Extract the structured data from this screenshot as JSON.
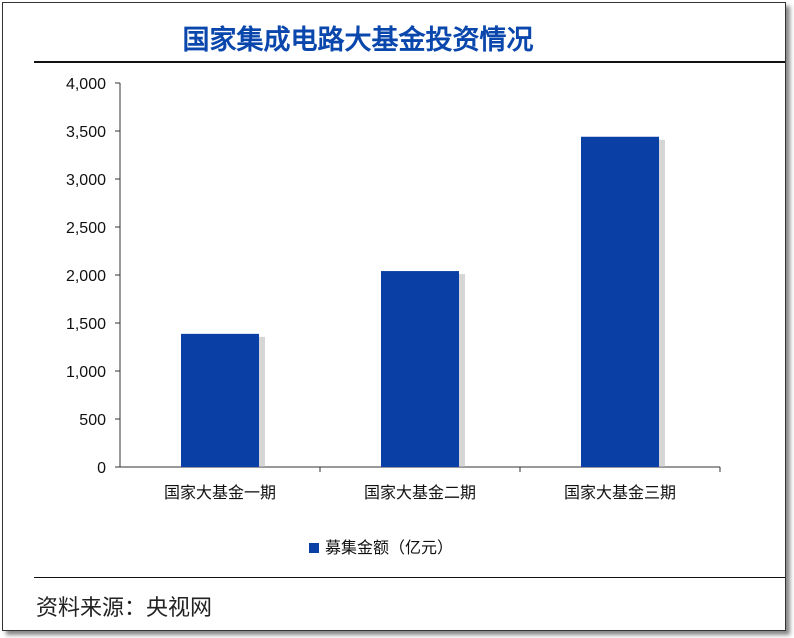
{
  "title": "国家集成电路大基金投资情况",
  "source": "资料来源：央视网",
  "chart_data": {
    "type": "bar",
    "title": "国家集成电路大基金投资情况",
    "categories": [
      "国家大基金一期",
      "国家大基金二期",
      "国家大基金三期"
    ],
    "series": [
      {
        "name": "募集金额（亿元）",
        "values": [
          1387,
          2041,
          3440
        ]
      }
    ],
    "yticks": [
      "0",
      "500",
      "1,000",
      "1,500",
      "2,000",
      "2,500",
      "3,000",
      "3,500",
      "4,000"
    ],
    "ylim": [
      0,
      4000
    ],
    "legend": "bottom",
    "color": "#0a3fa6"
  }
}
